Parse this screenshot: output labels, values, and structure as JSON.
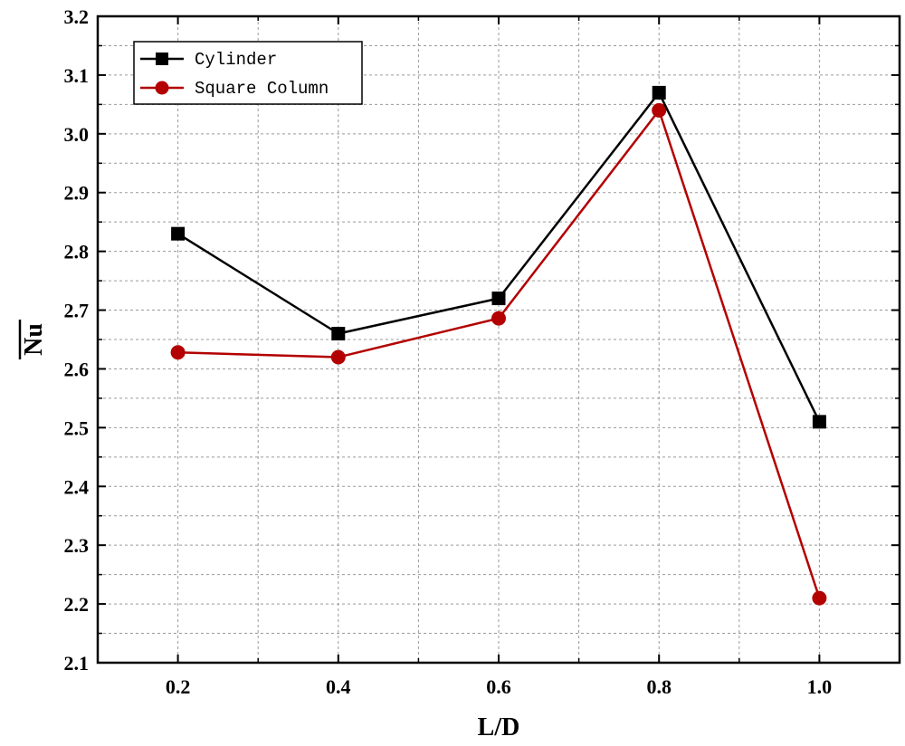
{
  "chart_data": {
    "type": "line",
    "x": [
      0.2,
      0.4,
      0.6,
      0.8,
      1.0
    ],
    "series": [
      {
        "name": "Cylinder",
        "values": [
          2.83,
          2.66,
          2.72,
          3.07,
          2.51
        ],
        "color": "#000000",
        "marker": "square"
      },
      {
        "name": "Square Column",
        "values": [
          2.628,
          2.62,
          2.686,
          3.04,
          2.21
        ],
        "color": "#b30000",
        "marker": "circle"
      }
    ],
    "xlabel": "L/D",
    "ylabel": "Nu",
    "ylabel_overline": true,
    "xlim": [
      0.1,
      1.1
    ],
    "ylim": [
      2.1,
      3.2
    ],
    "xticks": [
      "0.2",
      "0.4",
      "0.6",
      "0.8",
      "1.0"
    ],
    "yticks": [
      "2.1",
      "2.2",
      "2.3",
      "2.4",
      "2.5",
      "2.6",
      "2.7",
      "2.8",
      "2.9",
      "3.0",
      "3.1",
      "3.2"
    ],
    "grid": true,
    "legend_position": "top-left"
  }
}
